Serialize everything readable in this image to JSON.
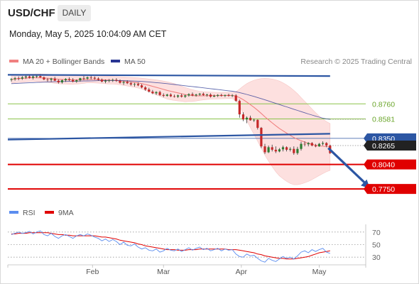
{
  "header": {
    "pair": "USD/CHF",
    "timeframe": "DAILY"
  },
  "datetime": "Monday, May 5, 2025 10:04:09 AM CET",
  "colors": {
    "up_candle": "#2e7d32",
    "down_candle": "#c62828",
    "ma20": "#f08080",
    "bollinger_fill": "#fde0df",
    "ma50": "#283593",
    "trendline": "#2c56a3",
    "support_line": "#e00000",
    "pivot_line": "#2c56a3",
    "target_line": "#8bc34a",
    "rsi": "#5b8def",
    "rsi_ma": "#e00000"
  },
  "chart_data": [
    {
      "type": "candlestick",
      "legend": [
        {
          "label": "MA 20 + Bollinger Bands",
          "color": "#f08080"
        },
        {
          "label": "MA 50",
          "color": "#283593"
        }
      ],
      "copyright": "Research © 2025 Trading Central",
      "x_tick_labels": [
        "Feb",
        "Mar",
        "Apr",
        "May"
      ],
      "price_range": [
        0.77,
        0.915
      ],
      "price_labels": [
        {
          "text": "0.8760",
          "value": 0.876,
          "style": "green-text"
        },
        {
          "text": "0.8581",
          "value": 0.8581,
          "style": "green-text"
        },
        {
          "text": "0.8350",
          "value": 0.835,
          "style": "blue-box"
        },
        {
          "text": "0.8265",
          "value": 0.8265,
          "style": "dark-box"
        },
        {
          "text": "0.8040",
          "value": 0.804,
          "style": "red-box"
        },
        {
          "text": "0.7750",
          "value": 0.775,
          "style": "red-box"
        }
      ],
      "levels": [
        {
          "value": 0.876,
          "kind": "target"
        },
        {
          "value": 0.8581,
          "kind": "target"
        },
        {
          "value": 0.835,
          "kind": "pivot"
        },
        {
          "value": 0.804,
          "kind": "support"
        },
        {
          "value": 0.775,
          "kind": "support"
        }
      ],
      "candles": [
        [
          0.9045,
          0.9065,
          0.9025,
          0.9055
        ],
        [
          0.9055,
          0.908,
          0.9035,
          0.9065
        ],
        [
          0.9065,
          0.9085,
          0.904,
          0.906
        ],
        [
          0.906,
          0.909,
          0.9045,
          0.9075
        ],
        [
          0.9075,
          0.91,
          0.9055,
          0.9085
        ],
        [
          0.9085,
          0.9105,
          0.906,
          0.907
        ],
        [
          0.907,
          0.9095,
          0.905,
          0.9085
        ],
        [
          0.9085,
          0.911,
          0.9065,
          0.909
        ],
        [
          0.909,
          0.9115,
          0.907,
          0.9075
        ],
        [
          0.9075,
          0.9085,
          0.904,
          0.905
        ],
        [
          0.905,
          0.9065,
          0.9025,
          0.9045
        ],
        [
          0.9045,
          0.907,
          0.902,
          0.906
        ],
        [
          0.906,
          0.908,
          0.903,
          0.9035
        ],
        [
          0.9035,
          0.905,
          0.9,
          0.9015
        ],
        [
          0.9015,
          0.905,
          0.9,
          0.904
        ],
        [
          0.904,
          0.9065,
          0.902,
          0.9055
        ],
        [
          0.9055,
          0.9075,
          0.903,
          0.9045
        ],
        [
          0.9045,
          0.9065,
          0.9015,
          0.9025
        ],
        [
          0.9025,
          0.905,
          0.901,
          0.904
        ],
        [
          0.904,
          0.907,
          0.9025,
          0.9065
        ],
        [
          0.9065,
          0.909,
          0.904,
          0.906
        ],
        [
          0.906,
          0.9085,
          0.9045,
          0.9075
        ],
        [
          0.9075,
          0.9095,
          0.905,
          0.907
        ],
        [
          0.907,
          0.9085,
          0.9045,
          0.906
        ],
        [
          0.906,
          0.9075,
          0.9035,
          0.9045
        ],
        [
          0.9045,
          0.906,
          0.9015,
          0.9025
        ],
        [
          0.9025,
          0.905,
          0.9005,
          0.9035
        ],
        [
          0.9035,
          0.9055,
          0.9015,
          0.904
        ],
        [
          0.904,
          0.906,
          0.902,
          0.9045
        ],
        [
          0.9045,
          0.9065,
          0.902,
          0.9035
        ],
        [
          0.9035,
          0.905,
          0.9,
          0.901
        ],
        [
          0.901,
          0.9035,
          0.8985,
          0.902
        ],
        [
          0.902,
          0.904,
          0.8995,
          0.9005
        ],
        [
          0.9005,
          0.902,
          0.8975,
          0.899
        ],
        [
          0.899,
          0.901,
          0.8965,
          0.8995
        ],
        [
          0.8995,
          0.9015,
          0.897,
          0.898
        ],
        [
          0.898,
          0.8995,
          0.8945,
          0.8955
        ],
        [
          0.8955,
          0.897,
          0.8915,
          0.893
        ],
        [
          0.893,
          0.895,
          0.8895,
          0.8905
        ],
        [
          0.8905,
          0.8925,
          0.8875,
          0.8885
        ],
        [
          0.8885,
          0.891,
          0.8865,
          0.89
        ],
        [
          0.89,
          0.8915,
          0.8855,
          0.8865
        ],
        [
          0.8865,
          0.8885,
          0.884,
          0.8855
        ],
        [
          0.8855,
          0.888,
          0.8845,
          0.887
        ],
        [
          0.887,
          0.8885,
          0.884,
          0.885
        ],
        [
          0.885,
          0.887,
          0.8835,
          0.8845
        ],
        [
          0.8845,
          0.887,
          0.883,
          0.886
        ],
        [
          0.886,
          0.888,
          0.8835,
          0.8845
        ],
        [
          0.8845,
          0.887,
          0.883,
          0.886
        ],
        [
          0.886,
          0.8885,
          0.8845,
          0.8875
        ],
        [
          0.8875,
          0.8895,
          0.885,
          0.886
        ],
        [
          0.886,
          0.888,
          0.8845,
          0.887
        ],
        [
          0.887,
          0.889,
          0.8855,
          0.888
        ],
        [
          0.888,
          0.8895,
          0.8855,
          0.8865
        ],
        [
          0.8865,
          0.888,
          0.8845,
          0.887
        ],
        [
          0.887,
          0.8885,
          0.8835,
          0.8845
        ],
        [
          0.8845,
          0.887,
          0.884,
          0.8855
        ],
        [
          0.8855,
          0.8875,
          0.884,
          0.8865
        ],
        [
          0.8865,
          0.888,
          0.8845,
          0.8855
        ],
        [
          0.8855,
          0.887,
          0.884,
          0.8865
        ],
        [
          0.8865,
          0.888,
          0.8845,
          0.8855
        ],
        [
          0.8855,
          0.8875,
          0.884,
          0.886
        ],
        [
          0.886,
          0.8875,
          0.8785,
          0.8795
        ],
        [
          0.8795,
          0.881,
          0.8595,
          0.8635
        ],
        [
          0.8635,
          0.866,
          0.8555,
          0.8575
        ],
        [
          0.8575,
          0.861,
          0.853,
          0.8595
        ],
        [
          0.8595,
          0.862,
          0.856,
          0.8565
        ],
        [
          0.8565,
          0.8585,
          0.8545,
          0.857
        ],
        [
          0.857,
          0.8575,
          0.8455,
          0.8475
        ],
        [
          0.8475,
          0.8485,
          0.8235,
          0.8255
        ],
        [
          0.8255,
          0.8285,
          0.8165,
          0.8185
        ],
        [
          0.8185,
          0.8265,
          0.8175,
          0.8245
        ],
        [
          0.8245,
          0.8275,
          0.8195,
          0.8215
        ],
        [
          0.8215,
          0.8255,
          0.8175,
          0.8195
        ],
        [
          0.8195,
          0.8235,
          0.8185,
          0.822
        ],
        [
          0.822,
          0.8265,
          0.8195,
          0.8245
        ],
        [
          0.8245,
          0.8255,
          0.8195,
          0.8215
        ],
        [
          0.8215,
          0.8245,
          0.8195,
          0.8225
        ],
        [
          0.8225,
          0.8255,
          0.8155,
          0.8175
        ],
        [
          0.8175,
          0.825,
          0.8155,
          0.8225
        ],
        [
          0.8225,
          0.831,
          0.8205,
          0.8285
        ],
        [
          0.8285,
          0.8315,
          0.8255,
          0.828
        ],
        [
          0.828,
          0.8305,
          0.8255,
          0.8295
        ],
        [
          0.8295,
          0.8305,
          0.8255,
          0.8265
        ],
        [
          0.8265,
          0.8285,
          0.8245,
          0.8255
        ],
        [
          0.8255,
          0.8295,
          0.825,
          0.8285
        ],
        [
          0.8285,
          0.8315,
          0.8265,
          0.8295
        ],
        [
          0.8295,
          0.8305,
          0.8245,
          0.8265
        ],
        [
          0.8265,
          0.8275,
          0.8165,
          0.8175
        ]
      ],
      "ma20": [
        0.905,
        0.9055,
        0.906,
        0.9062,
        0.9065,
        0.9068,
        0.907,
        0.907,
        0.9068,
        0.9066,
        0.9064,
        0.906,
        0.9056,
        0.9052,
        0.905,
        0.9048,
        0.9046,
        0.9045,
        0.9045,
        0.9046,
        0.9048,
        0.905,
        0.905,
        0.9049,
        0.9048,
        0.9046,
        0.9044,
        0.9042,
        0.904,
        0.9038,
        0.9034,
        0.903,
        0.9025,
        0.902,
        0.9014,
        0.9008,
        0.9,
        0.899,
        0.898,
        0.8968,
        0.8956,
        0.8944,
        0.8932,
        0.892,
        0.891,
        0.89,
        0.889,
        0.888,
        0.887,
        0.8864,
        0.8858,
        0.8856,
        0.8856,
        0.8856,
        0.8857,
        0.8858,
        0.8858,
        0.8858,
        0.8858,
        0.8859,
        0.886,
        0.886,
        0.8852,
        0.8834,
        0.881,
        0.8782,
        0.875,
        0.8718,
        0.8684,
        0.8646,
        0.8606,
        0.857,
        0.8535,
        0.85,
        0.8468,
        0.844,
        0.8412,
        0.8385,
        0.836,
        0.834,
        0.8322,
        0.8306,
        0.8292,
        0.828,
        0.827,
        0.8262,
        0.8256,
        0.8252,
        0.8248
      ],
      "bb_upper": [
        0.9095,
        0.91,
        0.9104,
        0.9108,
        0.911,
        0.9112,
        0.9114,
        0.9115,
        0.9115,
        0.9114,
        0.9112,
        0.911,
        0.9108,
        0.9106,
        0.9104,
        0.9102,
        0.91,
        0.9098,
        0.9096,
        0.9094,
        0.9092,
        0.909,
        0.909,
        0.909,
        0.909,
        0.909,
        0.9089,
        0.9088,
        0.9086,
        0.9084,
        0.9082,
        0.908,
        0.9078,
        0.9075,
        0.9072,
        0.9068,
        0.9064,
        0.906,
        0.9055,
        0.905,
        0.9044,
        0.9038,
        0.903,
        0.9022,
        0.9012,
        0.9,
        0.8985,
        0.897,
        0.8955,
        0.894,
        0.8928,
        0.8918,
        0.891,
        0.8905,
        0.8902,
        0.89,
        0.8898,
        0.8897,
        0.8896,
        0.8896,
        0.8896,
        0.8897,
        0.8905,
        0.8935,
        0.897,
        0.9,
        0.9022,
        0.904,
        0.9052,
        0.906,
        0.9062,
        0.906,
        0.9055,
        0.9045,
        0.903,
        0.901,
        0.8985,
        0.8955,
        0.892,
        0.888,
        0.8835,
        0.879,
        0.8745,
        0.87,
        0.8655,
        0.8615,
        0.858,
        0.855,
        0.8525
      ],
      "bb_lower": [
        0.9005,
        0.901,
        0.9016,
        0.9016,
        0.902,
        0.9024,
        0.9026,
        0.9025,
        0.9021,
        0.9018,
        0.9016,
        0.901,
        0.9004,
        0.8998,
        0.8996,
        0.8994,
        0.8992,
        0.8992,
        0.8994,
        0.8998,
        0.9004,
        0.901,
        0.901,
        0.9008,
        0.9006,
        0.9002,
        0.8999,
        0.8996,
        0.8994,
        0.8992,
        0.8986,
        0.898,
        0.8972,
        0.8965,
        0.8956,
        0.8948,
        0.8936,
        0.892,
        0.8905,
        0.8886,
        0.8868,
        0.885,
        0.8834,
        0.8818,
        0.8808,
        0.88,
        0.8795,
        0.879,
        0.8785,
        0.8788,
        0.8788,
        0.8794,
        0.8802,
        0.8807,
        0.8812,
        0.8816,
        0.8818,
        0.8819,
        0.882,
        0.8822,
        0.8824,
        0.8823,
        0.8799,
        0.8733,
        0.865,
        0.8564,
        0.8478,
        0.8396,
        0.8316,
        0.8232,
        0.815,
        0.808,
        0.8015,
        0.7955,
        0.7906,
        0.787,
        0.784,
        0.7815,
        0.78,
        0.78,
        0.7809,
        0.7822,
        0.7839,
        0.786,
        0.7885,
        0.7909,
        0.7932,
        0.7954,
        0.7971
      ],
      "ma50": [
        0.9,
        0.9002,
        0.9004,
        0.9006,
        0.9008,
        0.901,
        0.9012,
        0.9014,
        0.9016,
        0.9018,
        0.902,
        0.9022,
        0.9023,
        0.9024,
        0.9025,
        0.9026,
        0.9027,
        0.9028,
        0.9029,
        0.903,
        0.9031,
        0.9032,
        0.9033,
        0.9034,
        0.9035,
        0.9036,
        0.9036,
        0.9037,
        0.9037,
        0.9037,
        0.9036,
        0.9035,
        0.9034,
        0.9032,
        0.903,
        0.9028,
        0.9026,
        0.9023,
        0.902,
        0.9016,
        0.9012,
        0.9008,
        0.9004,
        0.9,
        0.8995,
        0.899,
        0.8985,
        0.898,
        0.8975,
        0.897,
        0.8965,
        0.896,
        0.8955,
        0.895,
        0.8945,
        0.894,
        0.8935,
        0.893,
        0.8925,
        0.892,
        0.8915,
        0.891,
        0.8903,
        0.8894,
        0.8883,
        0.8872,
        0.886,
        0.8848,
        0.8835,
        0.8822,
        0.8808,
        0.8794,
        0.878,
        0.8766,
        0.8752,
        0.8738,
        0.8724,
        0.871,
        0.8696,
        0.8682,
        0.8668,
        0.8654,
        0.864,
        0.8627,
        0.8614,
        0.8602,
        0.859,
        0.8582,
        0.8577
      ],
      "trendlines": [
        {
          "start_index": 0,
          "start_value": 0.9105,
          "end_index": 88,
          "end_value": 0.909
        },
        {
          "start_index": 0,
          "start_value": 0.8335,
          "end_index": 88,
          "end_value": 0.8405
        }
      ],
      "projection": {
        "from_index": 87.5,
        "from_value": 0.8235,
        "to_index": 99,
        "to_value": 0.7755
      }
    },
    {
      "type": "line",
      "legend": [
        {
          "label": "RSI",
          "color": "#5b8def"
        },
        {
          "label": "9MA",
          "color": "#e00000"
        }
      ],
      "y_tick_labels": [
        "70",
        "50",
        "30"
      ],
      "y_ticks": [
        70,
        50,
        30
      ],
      "y_range": [
        20,
        80
      ],
      "series": [
        {
          "name": "RSI",
          "values": [
            66,
            68,
            70,
            68,
            69,
            71,
            67,
            70,
            72,
            66,
            64,
            68,
            63,
            60,
            64,
            66,
            63,
            60,
            64,
            66,
            64,
            67,
            65,
            62,
            60,
            56,
            59,
            55,
            58,
            55,
            50,
            54,
            49,
            48,
            51,
            46,
            43,
            45,
            41,
            40,
            43,
            38,
            40,
            44,
            41,
            40,
            43,
            39,
            42,
            45,
            41,
            44,
            46,
            42,
            44,
            40,
            42,
            44,
            40,
            43,
            41,
            42,
            35,
            31,
            30,
            35,
            32,
            33,
            28,
            24,
            22,
            28,
            25,
            23,
            27,
            31,
            28,
            30,
            27,
            32,
            38,
            40,
            37,
            42,
            39,
            42,
            44,
            38,
            36
          ]
        },
        {
          "name": "9MA",
          "values": [
            67,
            67,
            68,
            68,
            68,
            69,
            69,
            69,
            69,
            69,
            69,
            68,
            67,
            66,
            66,
            65,
            65,
            64,
            64,
            64,
            64,
            64,
            64,
            64,
            63,
            62,
            62,
            61,
            60,
            59,
            57,
            56,
            55,
            54,
            53,
            51,
            50,
            48,
            47,
            46,
            45,
            44,
            43,
            42,
            42,
            42,
            41,
            41,
            41,
            42,
            42,
            42,
            43,
            43,
            43,
            43,
            43,
            43,
            43,
            43,
            42,
            42,
            42,
            41,
            40,
            39,
            38,
            37,
            35,
            34,
            32,
            31,
            30,
            29,
            28,
            28,
            27,
            27,
            27,
            28,
            29,
            30,
            31,
            33,
            35,
            37,
            38,
            39,
            40
          ]
        }
      ]
    }
  ]
}
